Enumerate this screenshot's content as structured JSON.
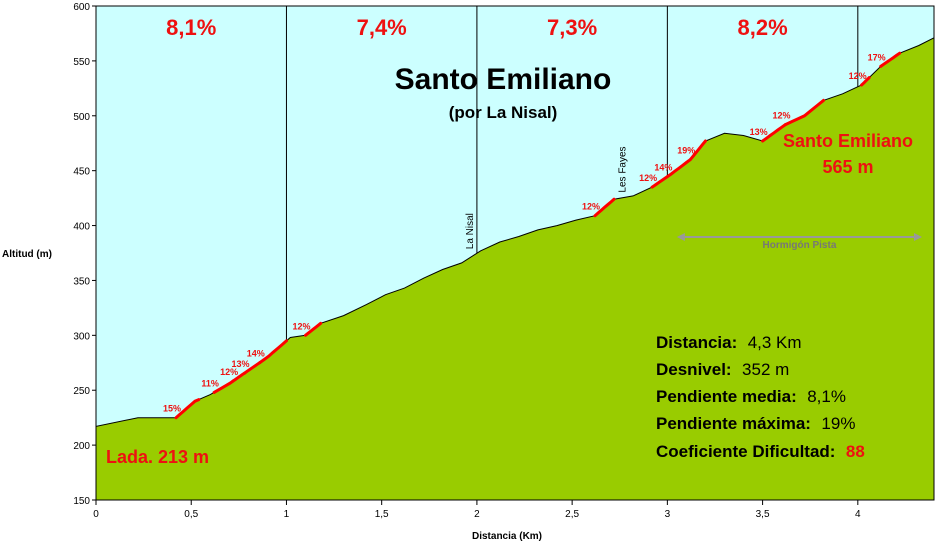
{
  "chart_data": {
    "type": "area",
    "title": "Santo Emiliano",
    "subtitle": "(por La Nisal)",
    "xlabel": "Distancia (Km)",
    "ylabel": "Altitud (m)",
    "xlim": [
      0,
      4.4
    ],
    "ylim": [
      150,
      600
    ],
    "x_ticks": [
      {
        "value": 0,
        "label": "0"
      },
      {
        "value": 0.5,
        "label": "0,5"
      },
      {
        "value": 1,
        "label": "1"
      },
      {
        "value": 1.5,
        "label": "1,5"
      },
      {
        "value": 2,
        "label": "2"
      },
      {
        "value": 2.5,
        "label": "2,5"
      },
      {
        "value": 3,
        "label": "3"
      },
      {
        "value": 3.5,
        "label": "3,5"
      },
      {
        "value": 4,
        "label": "4"
      }
    ],
    "y_ticks": [
      {
        "value": 150,
        "label": "150"
      },
      {
        "value": 200,
        "label": "200"
      },
      {
        "value": 250,
        "label": "250"
      },
      {
        "value": 300,
        "label": "300"
      },
      {
        "value": 350,
        "label": "350"
      },
      {
        "value": 400,
        "label": "400"
      },
      {
        "value": 450,
        "label": "450"
      },
      {
        "value": 500,
        "label": "500"
      },
      {
        "value": 550,
        "label": "550"
      },
      {
        "value": 600,
        "label": "600"
      }
    ],
    "profile": [
      {
        "x": 0.0,
        "y": 217
      },
      {
        "x": 0.22,
        "y": 225
      },
      {
        "x": 0.42,
        "y": 225
      },
      {
        "x": 0.52,
        "y": 240
      },
      {
        "x": 0.6,
        "y": 246
      },
      {
        "x": 0.7,
        "y": 256
      },
      {
        "x": 0.8,
        "y": 268
      },
      {
        "x": 0.9,
        "y": 280
      },
      {
        "x": 1.02,
        "y": 298
      },
      {
        "x": 1.1,
        "y": 300
      },
      {
        "x": 1.18,
        "y": 311
      },
      {
        "x": 1.3,
        "y": 318
      },
      {
        "x": 1.42,
        "y": 328
      },
      {
        "x": 1.52,
        "y": 337
      },
      {
        "x": 1.62,
        "y": 343
      },
      {
        "x": 1.72,
        "y": 352
      },
      {
        "x": 1.82,
        "y": 360
      },
      {
        "x": 1.92,
        "y": 366
      },
      {
        "x": 2.02,
        "y": 377
      },
      {
        "x": 2.12,
        "y": 385
      },
      {
        "x": 2.22,
        "y": 390
      },
      {
        "x": 2.32,
        "y": 396
      },
      {
        "x": 2.42,
        "y": 400
      },
      {
        "x": 2.52,
        "y": 405
      },
      {
        "x": 2.62,
        "y": 409
      },
      {
        "x": 2.72,
        "y": 424
      },
      {
        "x": 2.82,
        "y": 427
      },
      {
        "x": 2.92,
        "y": 435
      },
      {
        "x": 3.02,
        "y": 447
      },
      {
        "x": 3.12,
        "y": 460
      },
      {
        "x": 3.2,
        "y": 477
      },
      {
        "x": 3.3,
        "y": 484
      },
      {
        "x": 3.4,
        "y": 482
      },
      {
        "x": 3.5,
        "y": 477
      },
      {
        "x": 3.62,
        "y": 492
      },
      {
        "x": 3.72,
        "y": 500
      },
      {
        "x": 3.82,
        "y": 514
      },
      {
        "x": 3.92,
        "y": 520
      },
      {
        "x": 4.02,
        "y": 528
      },
      {
        "x": 4.12,
        "y": 545
      },
      {
        "x": 4.22,
        "y": 557
      },
      {
        "x": 4.32,
        "y": 564
      },
      {
        "x": 4.42,
        "y": 571
      }
    ],
    "steep_segments": [
      {
        "x0": 0.42,
        "x1": 0.54,
        "label": "15%"
      },
      {
        "x0": 0.62,
        "x1": 0.72,
        "label": "11%"
      },
      {
        "x0": 0.72,
        "x1": 0.78,
        "label": "12%"
      },
      {
        "x0": 0.78,
        "x1": 0.86,
        "label": "13%"
      },
      {
        "x0": 0.86,
        "x1": 1.0,
        "label": "14%"
      },
      {
        "x0": 1.1,
        "x1": 1.18,
        "label": "12%"
      },
      {
        "x0": 2.62,
        "x1": 2.72,
        "label": "12%"
      },
      {
        "x0": 2.92,
        "x1": 3.0,
        "label": "12%"
      },
      {
        "x0": 3.0,
        "x1": 3.12,
        "label": "14%"
      },
      {
        "x0": 3.12,
        "x1": 3.2,
        "label": "19%"
      },
      {
        "x0": 3.5,
        "x1": 3.62,
        "label": "13%"
      },
      {
        "x0": 3.62,
        "x1": 3.82,
        "label": "12%"
      },
      {
        "x0": 4.02,
        "x1": 4.06,
        "label": "12%"
      },
      {
        "x0": 4.12,
        "x1": 4.22,
        "label": "17%"
      }
    ],
    "km_segments": [
      {
        "x0": 0,
        "x1": 1,
        "label": "8,1%"
      },
      {
        "x0": 1,
        "x1": 2,
        "label": "7,4%"
      },
      {
        "x0": 2,
        "x1": 3,
        "label": "7,3%"
      },
      {
        "x0": 3,
        "x1": 4,
        "label": "8,2%"
      }
    ],
    "places": [
      {
        "x": 2.0,
        "label": "La Nisal"
      },
      {
        "x": 2.8,
        "label": "Les Fayes"
      }
    ],
    "surface": {
      "x0": 3.05,
      "x1": 4.4,
      "label": "Hormigón  Pista"
    },
    "start": {
      "label": "Lada. 213 m"
    },
    "end": {
      "name": "Santo Emiliano",
      "altitude": "565 m"
    },
    "stats": [
      {
        "key": "Distancia:",
        "value": "4,3 Km"
      },
      {
        "key": "Desnivel:",
        "value": "352 m"
      },
      {
        "key": "Pendiente media:",
        "value": "8,1%"
      },
      {
        "key": "Pendiente máxima:",
        "value": "19%"
      },
      {
        "key": "Coeficiente Dificultad:",
        "value": "88"
      }
    ],
    "colors": {
      "sky": "#ccffff",
      "terrain": "#99cc00",
      "steep": "#ff0000",
      "label_red": "#ee1111",
      "surface_arrow": "#999999"
    },
    "grid": false
  }
}
